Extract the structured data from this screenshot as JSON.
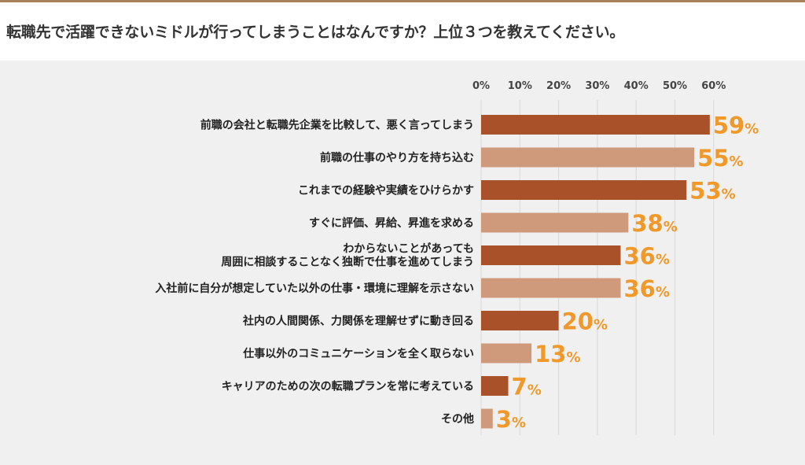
{
  "question": "転職先で活躍できないミドルが行ってしまうことはなんですか？上位３つを教えてください。",
  "chart_data": {
    "type": "bar",
    "orientation": "horizontal",
    "categories": [
      [
        "前職の会社と転職先企業を比較して、悪く言ってしまう"
      ],
      [
        "前職の仕事のやり方を持ち込む"
      ],
      [
        "これまでの経験や実績をひけらかす"
      ],
      [
        "すぐに評価、昇給、昇進を求める"
      ],
      [
        "わからないことがあっても",
        "周囲に相談することなく独断で仕事を進めてしまう"
      ],
      [
        "入社前に自分が想定していた以外の仕事・環境に理解を示さない"
      ],
      [
        "社内の人間関係、力関係を理解せずに動き回る"
      ],
      [
        "仕事以外のコミュニケーションを全く取らない"
      ],
      [
        "キャリアのための次の転職プランを常に考えている"
      ],
      [
        "その他"
      ]
    ],
    "values": [
      59,
      55,
      53,
      38,
      36,
      36,
      20,
      13,
      7,
      3
    ],
    "value_unit": "%",
    "x_ticks": [
      "0%",
      "10%",
      "20%",
      "30%",
      "40%",
      "50%",
      "60%"
    ],
    "xlim": [
      0,
      60
    ],
    "grid": true,
    "colors": {
      "dark_bar": "#a9522a",
      "light_bar": "#cf9a7c",
      "value_label": "#f0982a",
      "grid": "#d8d8d8"
    }
  }
}
